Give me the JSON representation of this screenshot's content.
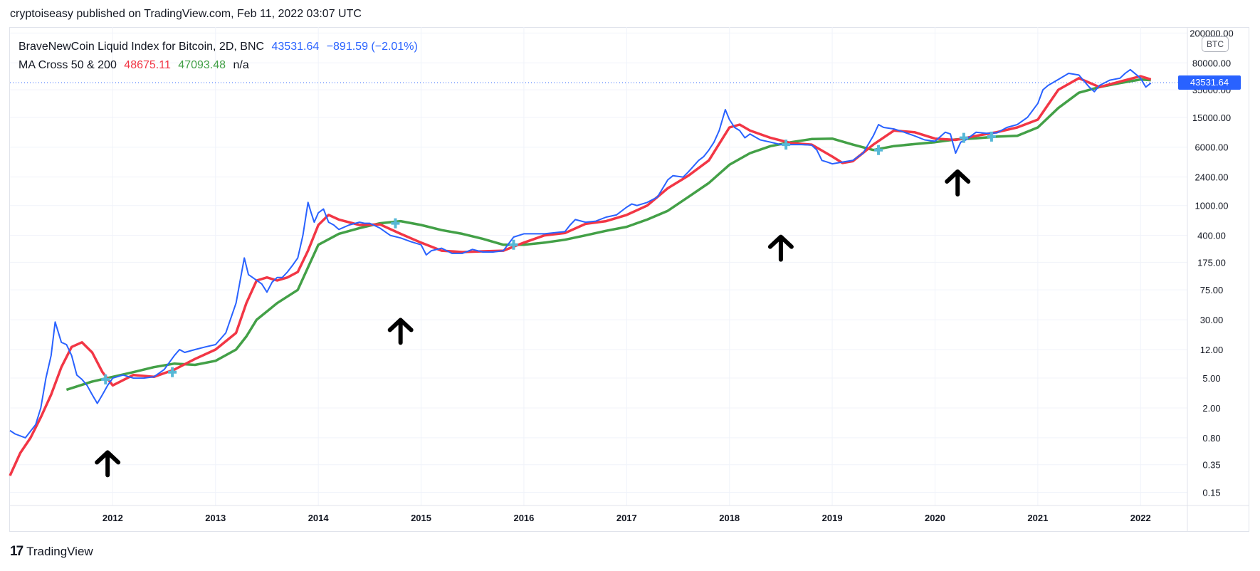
{
  "header": {
    "text": "cryptoiseasy published on TradingView.com, Feb 11, 2022 03:07 UTC"
  },
  "legend": {
    "symbol": "BraveNewCoin Liquid Index for Bitcoin, 2D, BNC",
    "last": "43531.64",
    "change": "−891.59 (−2.01%)",
    "ma_label": "MA Cross 50 & 200",
    "ma50": "48675.11",
    "ma200": "47093.48",
    "na": "n/a"
  },
  "price_tag": "43531.64",
  "currency_tag": "BTC",
  "footer": {
    "logo": "17",
    "brand": "TradingView"
  },
  "colors": {
    "price": "#2962ff",
    "ma50": "#f23645",
    "ma200": "#43a047",
    "cross": "#56b8d6",
    "arrow": "#000000"
  },
  "chart_data": {
    "type": "line",
    "y_scale": "log",
    "ylim": [
      0.1,
      240000
    ],
    "xlim": [
      2011.0,
      2022.4
    ],
    "x_ticks": [
      "2012",
      "2013",
      "2014",
      "2015",
      "2016",
      "2017",
      "2018",
      "2019",
      "2020",
      "2021",
      "2022"
    ],
    "y_ticks": [
      "200000.00",
      "80000.00",
      "35000.00",
      "15000.00",
      "6000.00",
      "2400.00",
      "1000.00",
      "400.00",
      "175.00",
      "75.00",
      "30.00",
      "12.00",
      "5.00",
      "2.00",
      "0.80",
      "0.35",
      "0.15"
    ],
    "series": [
      {
        "name": "BraveNewCoin Liquid Index for Bitcoin",
        "x": [
          2011.0,
          2011.05,
          2011.15,
          2011.25,
          2011.3,
          2011.35,
          2011.4,
          2011.44,
          2011.5,
          2011.55,
          2011.6,
          2011.65,
          2011.7,
          2011.75,
          2011.8,
          2011.85,
          2011.9,
          2011.95,
          2012.0,
          2012.1,
          2012.2,
          2012.3,
          2012.4,
          2012.5,
          2012.6,
          2012.65,
          2012.7,
          2012.8,
          2012.9,
          2013.0,
          2013.1,
          2013.2,
          2013.25,
          2013.28,
          2013.32,
          2013.36,
          2013.45,
          2013.5,
          2013.55,
          2013.6,
          2013.65,
          2013.7,
          2013.75,
          2013.8,
          2013.85,
          2013.9,
          2013.93,
          2013.96,
          2014.0,
          2014.05,
          2014.1,
          2014.15,
          2014.2,
          2014.3,
          2014.4,
          2014.45,
          2014.5,
          2014.6,
          2014.7,
          2014.8,
          2014.9,
          2015.0,
          2015.05,
          2015.1,
          2015.2,
          2015.3,
          2015.4,
          2015.5,
          2015.6,
          2015.7,
          2015.8,
          2015.9,
          2016.0,
          2016.2,
          2016.4,
          2016.45,
          2016.5,
          2016.6,
          2016.7,
          2016.8,
          2016.9,
          2017.0,
          2017.05,
          2017.1,
          2017.2,
          2017.3,
          2017.4,
          2017.45,
          2017.55,
          2017.6,
          2017.7,
          2017.75,
          2017.8,
          2017.85,
          2017.9,
          2017.96,
          2018.0,
          2018.05,
          2018.1,
          2018.15,
          2018.2,
          2018.3,
          2018.4,
          2018.5,
          2018.6,
          2018.7,
          2018.8,
          2018.85,
          2018.9,
          2018.95,
          2019.0,
          2019.1,
          2019.2,
          2019.3,
          2019.4,
          2019.45,
          2019.5,
          2019.6,
          2019.7,
          2019.8,
          2019.9,
          2020.0,
          2020.1,
          2020.15,
          2020.2,
          2020.25,
          2020.3,
          2020.4,
          2020.5,
          2020.6,
          2020.7,
          2020.8,
          2020.9,
          2021.0,
          2021.05,
          2021.1,
          2021.2,
          2021.3,
          2021.4,
          2021.5,
          2021.55,
          2021.6,
          2021.7,
          2021.8,
          2021.85,
          2021.9,
          2022.0,
          2022.05,
          2022.1
        ],
        "y": [
          1.0,
          0.9,
          0.8,
          1.2,
          2.0,
          5.0,
          10.0,
          28.0,
          15.0,
          14.0,
          10.0,
          5.5,
          4.8,
          4.0,
          3.0,
          2.3,
          3.0,
          4.0,
          5.0,
          5.5,
          5.0,
          5.0,
          5.2,
          6.5,
          10.0,
          12.0,
          11.0,
          12.0,
          13.0,
          14.0,
          20.0,
          50.0,
          120.0,
          200.0,
          120.0,
          110.0,
          90.0,
          70.0,
          95.0,
          110.0,
          110.0,
          130.0,
          160.0,
          200.0,
          400.0,
          1100.0,
          800.0,
          600.0,
          800.0,
          900.0,
          600.0,
          550.0,
          480.0,
          550.0,
          600.0,
          580.0,
          580.0,
          500.0,
          400.0,
          370.0,
          330.0,
          300.0,
          220.0,
          250.0,
          270.0,
          230.0,
          230.0,
          260.0,
          240.0,
          240.0,
          250.0,
          380.0,
          420.0,
          420.0,
          450.0,
          550.0,
          650.0,
          600.0,
          620.0,
          700.0,
          750.0,
          950.0,
          1050.0,
          1000.0,
          1100.0,
          1300.0,
          2200.0,
          2500.0,
          2400.0,
          2800.0,
          4000.0,
          4500.0,
          5500.0,
          7000.0,
          10000.0,
          19000.0,
          14000.0,
          11000.0,
          10000.0,
          8000.0,
          9000.0,
          7500.0,
          7000.0,
          6500.0,
          6500.0,
          6500.0,
          6400.0,
          5500.0,
          4000.0,
          3800.0,
          3600.0,
          3800.0,
          4000.0,
          5000.0,
          8500.0,
          12000.0,
          11000.0,
          10500.0,
          9500.0,
          8500.0,
          7500.0,
          7200.0,
          9500.0,
          9000.0,
          5000.0,
          7000.0,
          7500.0,
          9500.0,
          9200.0,
          9300.0,
          11000.0,
          12000.0,
          15000.0,
          23000.0,
          35000.0,
          40000.0,
          48000.0,
          58000.0,
          55000.0,
          38000.0,
          33000.0,
          40000.0,
          47000.0,
          50000.0,
          58000.0,
          65000.0,
          50000.0,
          38000.0,
          43000.0
        ]
      },
      {
        "name": "MA 50",
        "x": [
          2011.0,
          2011.1,
          2011.2,
          2011.3,
          2011.4,
          2011.5,
          2011.6,
          2011.7,
          2011.8,
          2011.9,
          2012.0,
          2012.2,
          2012.4,
          2012.6,
          2012.8,
          2013.0,
          2013.2,
          2013.3,
          2013.4,
          2013.5,
          2013.6,
          2013.7,
          2013.8,
          2013.9,
          2014.0,
          2014.1,
          2014.2,
          2014.4,
          2014.6,
          2014.8,
          2015.0,
          2015.2,
          2015.4,
          2015.6,
          2015.8,
          2016.0,
          2016.2,
          2016.4,
          2016.6,
          2016.8,
          2017.0,
          2017.2,
          2017.4,
          2017.6,
          2017.8,
          2018.0,
          2018.1,
          2018.2,
          2018.4,
          2018.6,
          2018.8,
          2019.0,
          2019.1,
          2019.2,
          2019.4,
          2019.6,
          2019.8,
          2020.0,
          2020.2,
          2020.4,
          2020.6,
          2020.8,
          2021.0,
          2021.2,
          2021.4,
          2021.6,
          2021.8,
          2022.0,
          2022.1
        ],
        "y": [
          0.25,
          0.5,
          0.8,
          1.5,
          3.0,
          7.0,
          13.0,
          15.0,
          11.0,
          6.0,
          4.0,
          5.5,
          5.2,
          6.5,
          9.0,
          12.0,
          20.0,
          50.0,
          100.0,
          110.0,
          100.0,
          110.0,
          130.0,
          250.0,
          550.0,
          750.0,
          650.0,
          550.0,
          560.0,
          420.0,
          320.0,
          250.0,
          240.0,
          245.0,
          250.0,
          320.0,
          400.0,
          430.0,
          570.0,
          620.0,
          750.0,
          1000.0,
          1700.0,
          2500.0,
          4000.0,
          11000.0,
          12000.0,
          10000.0,
          8000.0,
          6800.0,
          6500.0,
          4500.0,
          3700.0,
          3900.0,
          6500.0,
          10000.0,
          9500.0,
          7800.0,
          7500.0,
          8500.0,
          9500.0,
          11000.0,
          14000.0,
          35000.0,
          50000.0,
          38000.0,
          45000.0,
          53000.0,
          48000.0
        ]
      },
      {
        "name": "MA 200",
        "x": [
          2011.55,
          2011.8,
          2012.0,
          2012.2,
          2012.4,
          2012.6,
          2012.8,
          2013.0,
          2013.2,
          2013.3,
          2013.4,
          2013.6,
          2013.8,
          2013.9,
          2014.0,
          2014.2,
          2014.4,
          2014.6,
          2014.8,
          2015.0,
          2015.2,
          2015.4,
          2015.6,
          2015.8,
          2016.0,
          2016.2,
          2016.4,
          2016.6,
          2016.8,
          2017.0,
          2017.2,
          2017.4,
          2017.6,
          2017.8,
          2018.0,
          2018.2,
          2018.4,
          2018.6,
          2018.8,
          2019.0,
          2019.2,
          2019.4,
          2019.6,
          2019.8,
          2020.0,
          2020.2,
          2020.4,
          2020.6,
          2020.8,
          2021.0,
          2021.2,
          2021.4,
          2021.6,
          2021.8,
          2022.0,
          2022.1
        ],
        "y": [
          3.5,
          4.5,
          5.2,
          6.0,
          7.0,
          7.8,
          7.5,
          8.5,
          12.0,
          18.0,
          30.0,
          50.0,
          75.0,
          150.0,
          300.0,
          420.0,
          500.0,
          580.0,
          620.0,
          550.0,
          470.0,
          420.0,
          360.0,
          300.0,
          300.0,
          320.0,
          350.0,
          400.0,
          460.0,
          520.0,
          650.0,
          850.0,
          1300.0,
          2000.0,
          3500.0,
          5000.0,
          6200.0,
          7000.0,
          7700.0,
          7800.0,
          6500.0,
          5500.0,
          6200.0,
          6600.0,
          7000.0,
          7600.0,
          7900.0,
          8300.0,
          8500.0,
          11000.0,
          20000.0,
          32000.0,
          38000.0,
          43000.0,
          48000.0,
          47000.0
        ]
      }
    ],
    "cross_markers": {
      "x": [
        2011.93,
        2012.58,
        2014.75,
        2015.9,
        2018.55,
        2019.45,
        2020.28,
        2020.55
      ],
      "y": [
        4.8,
        6.0,
        580.0,
        300.0,
        6500.0,
        5500.0,
        8000.0,
        8300.0
      ]
    },
    "arrows": {
      "x": [
        2011.95,
        2014.8,
        2018.5,
        2020.22
      ],
      "y": [
        0.36,
        21.0,
        270.0,
        2000.0
      ]
    },
    "last_price": 43531.64
  }
}
